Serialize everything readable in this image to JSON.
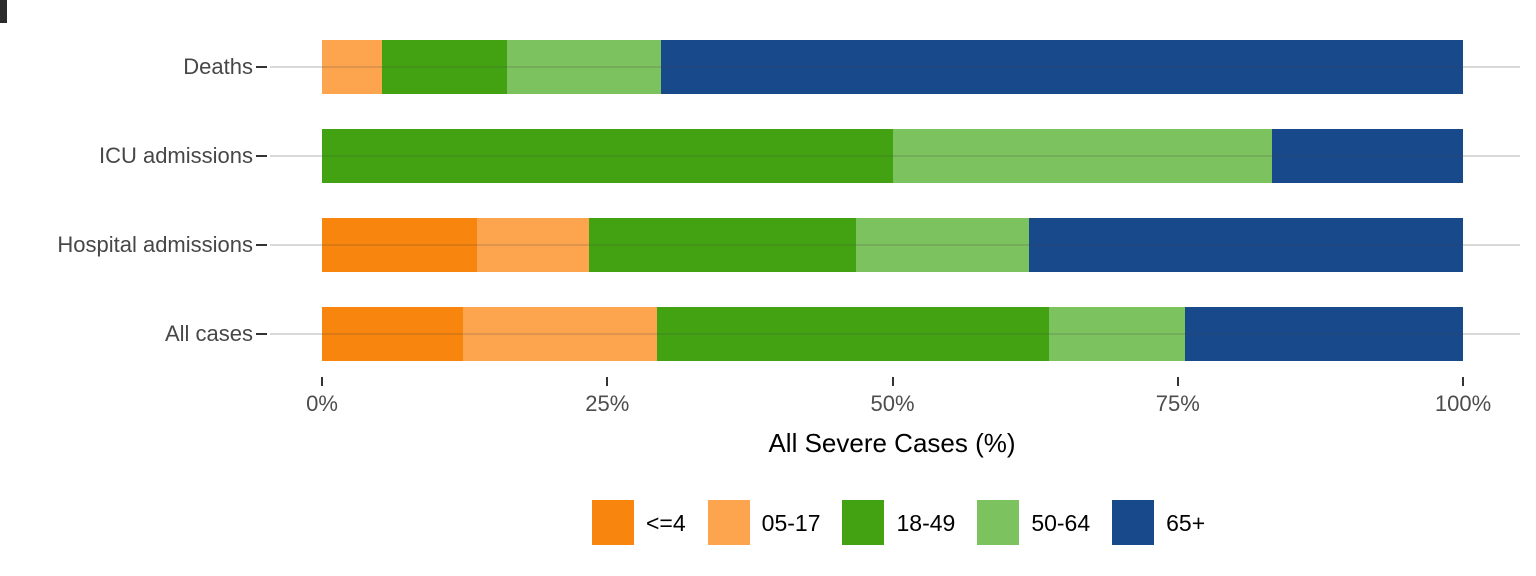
{
  "chart_data": {
    "type": "bar",
    "orientation": "horizontal",
    "stacked": true,
    "stack_unit": "percent",
    "title": "",
    "xlabel": "All Severe Cases (%)",
    "ylabel": "",
    "xlim": [
      0,
      100
    ],
    "x_tick_labels": [
      "0%",
      "25%",
      "50%",
      "75%",
      "100%"
    ],
    "x_tick_values": [
      0,
      25,
      50,
      75,
      100
    ],
    "categories": [
      "Deaths",
      "ICU admissions",
      "Hospital admissions",
      "All cases"
    ],
    "series": [
      {
        "name": "<=4",
        "color": "#f8850d",
        "values": [
          0,
          0,
          13.6,
          12.4
        ]
      },
      {
        "name": "05-17",
        "color": "#fca44e",
        "values": [
          5.3,
          0,
          9.8,
          17.0
        ]
      },
      {
        "name": "18-49",
        "color": "#42a212",
        "values": [
          10.9,
          50.0,
          23.4,
          34.3
        ]
      },
      {
        "name": "50-64",
        "color": "#7cc25e",
        "values": [
          13.5,
          33.3,
          15.2,
          11.9
        ]
      },
      {
        "name": "65+",
        "color": "#17498b",
        "values": [
          70.3,
          16.7,
          38.0,
          24.4
        ]
      }
    ],
    "legend_position": "bottom",
    "grid": "horizontal category gridlines, light gray",
    "text_colors": {
      "axis_ticks": "#4d4d4d",
      "axis_title": "#000000",
      "legend": "#000000"
    }
  }
}
